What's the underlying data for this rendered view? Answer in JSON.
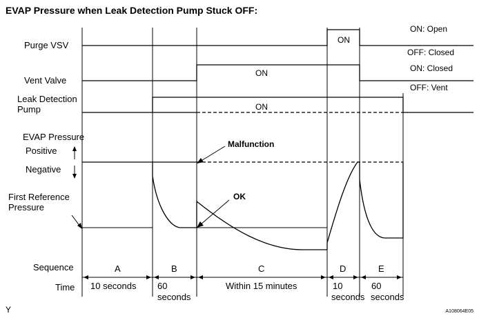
{
  "title": "EVAP Pressure when Leak Detection Pump Stuck OFF:",
  "rows": {
    "purge_vsv": "Purge VSV",
    "vent_valve": "Vent Valve",
    "pump_line1": "Leak Detection",
    "pump_line2": "Pump",
    "evap_pressure": "EVAP Pressure",
    "positive": "Positive",
    "negative": "Negative",
    "first_ref_line1": "First Reference",
    "first_ref_line2": "Pressure",
    "sequence": "Sequence",
    "time": "Time"
  },
  "states": {
    "purge_on": "ON: Open",
    "purge_off": "OFF: Closed",
    "vent_on": "ON: Closed",
    "vent_off": "OFF: Vent"
  },
  "bar_labels": {
    "purge": "ON",
    "vent": "ON",
    "pump": "ON"
  },
  "annotations": {
    "malfunction": "Malfunction",
    "ok": "OK"
  },
  "phases": [
    {
      "id": "A",
      "time": "10 seconds",
      "time2": ""
    },
    {
      "id": "B",
      "time": "60",
      "time2": "seconds"
    },
    {
      "id": "C",
      "time": "Within 15 minutes",
      "time2": ""
    },
    {
      "id": "D",
      "time": "10",
      "time2": "seconds"
    },
    {
      "id": "E",
      "time": "60",
      "time2": "seconds"
    }
  ],
  "footer": {
    "left": "Y",
    "right": "A108064E05"
  }
}
